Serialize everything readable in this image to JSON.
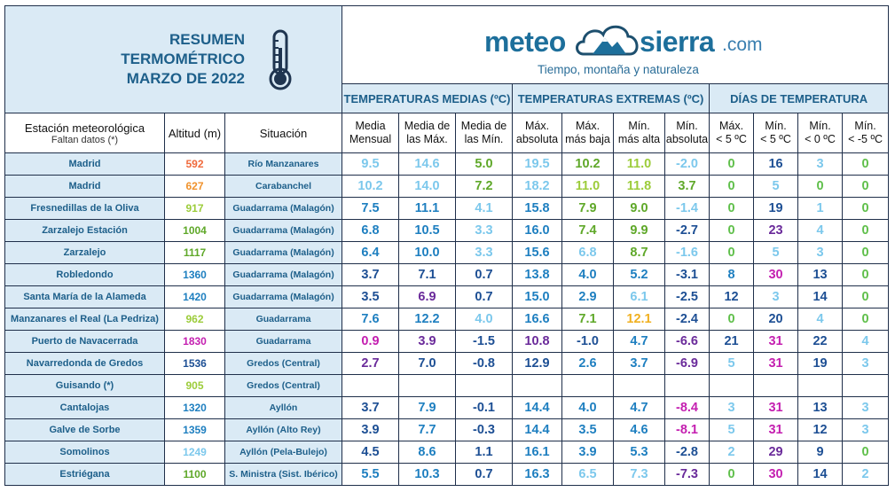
{
  "title": {
    "line1": "RESUMEN",
    "line2": "TERMOMÉTRICO",
    "line3": "MARZO DE 2022"
  },
  "brand": {
    "meteo": "meteo",
    "sierra": "sierra",
    "com": ".com",
    "tagline": "Tiempo, montaña y naturaleza"
  },
  "groups": {
    "medias": "TEMPERATURAS MEDIAS (ºC)",
    "extremas": "TEMPERATURAS EXTREMAS (ºC)",
    "dias": "DÍAS DE TEMPERATURA"
  },
  "columns": {
    "station": "Estación meteorológica",
    "station_note": "Faltan datos (*)",
    "altitude": "Altitud (m)",
    "situation": "Situación",
    "media_mensual": [
      "Media",
      "Mensual"
    ],
    "media_max": [
      "Media de",
      "las Máx."
    ],
    "media_min": [
      "Media de",
      "las Mín."
    ],
    "max_abs": [
      "Máx.",
      "absoluta"
    ],
    "max_baja": [
      "Máx.",
      "más baja"
    ],
    "min_alta": [
      "Mín.",
      "más alta"
    ],
    "min_abs": [
      "Mín.",
      "absoluta"
    ],
    "d1": [
      "Máx.",
      "< 5 ºC"
    ],
    "d2": [
      "Mín.",
      "< 5 ºC"
    ],
    "d3": [
      "Mín.",
      "< 0 ºC"
    ],
    "d4": [
      "Mín.",
      "< -5 ºC"
    ]
  },
  "rows": [
    {
      "station": "Madrid",
      "alt": "592",
      "alt_color": "#f06a3c",
      "sit": "Río Manzanares",
      "vals": [
        "9.5",
        "14.6",
        "5.0",
        "19.5",
        "10.2",
        "11.0",
        "-2.0",
        "0",
        "16",
        "3",
        "0"
      ],
      "colors": [
        "#7cc8ec",
        "#7cc8ec",
        "#5fa829",
        "#7cc8ec",
        "#5fa829",
        "#9ccc3a",
        "#7cc8ec",
        "#5fbf4a",
        "#1d4f94",
        "#7cc8ec",
        "#5fbf4a"
      ]
    },
    {
      "station": "Madrid",
      "alt": "627",
      "alt_color": "#f0922c",
      "sit": "Carabanchel",
      "vals": [
        "10.2",
        "14.0",
        "7.2",
        "18.2",
        "11.0",
        "11.8",
        "3.7",
        "0",
        "5",
        "0",
        "0"
      ],
      "colors": [
        "#7cc8ec",
        "#7cc8ec",
        "#5fa829",
        "#7cc8ec",
        "#9ccc3a",
        "#9ccc3a",
        "#5fa829",
        "#5fbf4a",
        "#7cc8ec",
        "#5fbf4a",
        "#5fbf4a"
      ]
    },
    {
      "station": "Fresnedillas de la Oliva",
      "alt": "917",
      "alt_color": "#9ccc3a",
      "sit": "Guadarrama (Malagón)",
      "vals": [
        "7.5",
        "11.1",
        "4.1",
        "15.8",
        "7.9",
        "9.0",
        "-1.4",
        "0",
        "19",
        "1",
        "0"
      ],
      "colors": [
        "#1e7fc0",
        "#1e7fc0",
        "#7cc8ec",
        "#1e7fc0",
        "#5fa829",
        "#5fa829",
        "#7cc8ec",
        "#5fbf4a",
        "#1d4f94",
        "#7cc8ec",
        "#5fbf4a"
      ]
    },
    {
      "station": "Zarzalejo Estación",
      "alt": "1004",
      "alt_color": "#5fa829",
      "sit": "Guadarrama (Malagón)",
      "vals": [
        "6.8",
        "10.5",
        "3.3",
        "16.0",
        "7.4",
        "9.9",
        "-2.7",
        "0",
        "23",
        "4",
        "0"
      ],
      "colors": [
        "#1e7fc0",
        "#1e7fc0",
        "#7cc8ec",
        "#1e7fc0",
        "#5fa829",
        "#5fa829",
        "#1d4f94",
        "#5fbf4a",
        "#6a2a9a",
        "#7cc8ec",
        "#5fbf4a"
      ]
    },
    {
      "station": "Zarzalejo",
      "alt": "1117",
      "alt_color": "#5fa829",
      "sit": "Guadarrama (Malagón)",
      "vals": [
        "6.4",
        "10.0",
        "3.3",
        "15.6",
        "6.8",
        "8.7",
        "-1.6",
        "0",
        "5",
        "3",
        "0"
      ],
      "colors": [
        "#1e7fc0",
        "#1e7fc0",
        "#7cc8ec",
        "#1e7fc0",
        "#7cc8ec",
        "#5fa829",
        "#7cc8ec",
        "#5fbf4a",
        "#7cc8ec",
        "#7cc8ec",
        "#5fbf4a"
      ]
    },
    {
      "station": "Robledondo",
      "alt": "1360",
      "alt_color": "#1e7fc0",
      "sit": "Guadarrama (Malagón)",
      "vals": [
        "3.7",
        "7.1",
        "0.7",
        "13.8",
        "4.0",
        "5.2",
        "-3.1",
        "8",
        "30",
        "13",
        "0"
      ],
      "colors": [
        "#1d4f94",
        "#1d4f94",
        "#1d4f94",
        "#1e7fc0",
        "#1e7fc0",
        "#1e7fc0",
        "#1d4f94",
        "#1e7fc0",
        "#c41fb0",
        "#1d4f94",
        "#5fbf4a"
      ]
    },
    {
      "station": "Santa María de la Alameda",
      "alt": "1420",
      "alt_color": "#1e7fc0",
      "sit": "Guadarrama (Malagón)",
      "vals": [
        "3.5",
        "6.9",
        "0.7",
        "15.0",
        "2.9",
        "6.1",
        "-2.5",
        "12",
        "3",
        "14",
        "0"
      ],
      "colors": [
        "#1d4f94",
        "#6a2a9a",
        "#1d4f94",
        "#1e7fc0",
        "#1e7fc0",
        "#7cc8ec",
        "#1d4f94",
        "#1d4f94",
        "#7cc8ec",
        "#1d4f94",
        "#5fbf4a"
      ]
    },
    {
      "station": "Manzanares el Real (La Pedriza)",
      "alt": "962",
      "alt_color": "#9ccc3a",
      "sit": "Guadarrama",
      "vals": [
        "7.6",
        "12.2",
        "4.0",
        "16.6",
        "7.1",
        "12.1",
        "-2.4",
        "0",
        "20",
        "4",
        "0"
      ],
      "colors": [
        "#1e7fc0",
        "#1e7fc0",
        "#7cc8ec",
        "#1e7fc0",
        "#5fa829",
        "#f0b020",
        "#1d4f94",
        "#5fbf4a",
        "#1d4f94",
        "#7cc8ec",
        "#5fbf4a"
      ]
    },
    {
      "station": "Puerto de Navacerrada",
      "alt": "1830",
      "alt_color": "#c41fb0",
      "sit": "Guadarrama",
      "vals": [
        "0.9",
        "3.9",
        "-1.5",
        "10.8",
        "-1.0",
        "4.7",
        "-6.6",
        "21",
        "31",
        "22",
        "4"
      ],
      "colors": [
        "#c41fb0",
        "#6a2a9a",
        "#1d4f94",
        "#6a2a9a",
        "#1d4f94",
        "#1e7fc0",
        "#6a2a9a",
        "#1d4f94",
        "#c41fb0",
        "#1d4f94",
        "#7cc8ec"
      ]
    },
    {
      "station": "Navarredonda de Gredos",
      "alt": "1536",
      "alt_color": "#1d4f94",
      "sit": "Gredos (Central)",
      "vals": [
        "2.7",
        "7.0",
        "-0.8",
        "12.9",
        "2.6",
        "3.7",
        "-6.9",
        "5",
        "31",
        "19",
        "3"
      ],
      "colors": [
        "#6a2a9a",
        "#1d4f94",
        "#1d4f94",
        "#1d4f94",
        "#1e7fc0",
        "#1e7fc0",
        "#6a2a9a",
        "#7cc8ec",
        "#c41fb0",
        "#1d4f94",
        "#7cc8ec"
      ]
    },
    {
      "station": "Guisando (*)",
      "alt": "905",
      "alt_color": "#9ccc3a",
      "sit": "Gredos (Central)",
      "vals": [
        "",
        "",
        "",
        "",
        "",
        "",
        "",
        "",
        "",
        "",
        ""
      ],
      "colors": [
        "#000",
        "#000",
        "#000",
        "#000",
        "#000",
        "#000",
        "#000",
        "#000",
        "#000",
        "#000",
        "#000"
      ]
    },
    {
      "station": "Cantalojas",
      "alt": "1320",
      "alt_color": "#1e7fc0",
      "sit": "Ayllón",
      "vals": [
        "3.7",
        "7.9",
        "-0.1",
        "14.4",
        "4.0",
        "4.7",
        "-8.4",
        "3",
        "31",
        "13",
        "3"
      ],
      "colors": [
        "#1d4f94",
        "#1e7fc0",
        "#1d4f94",
        "#1e7fc0",
        "#1e7fc0",
        "#1e7fc0",
        "#c41fb0",
        "#7cc8ec",
        "#c41fb0",
        "#1d4f94",
        "#7cc8ec"
      ]
    },
    {
      "station": "Galve de Sorbe",
      "alt": "1359",
      "alt_color": "#1e7fc0",
      "sit": "Ayllón (Alto Rey)",
      "vals": [
        "3.9",
        "7.7",
        "-0.3",
        "14.4",
        "3.5",
        "4.6",
        "-8.1",
        "5",
        "31",
        "12",
        "3"
      ],
      "colors": [
        "#1d4f94",
        "#1e7fc0",
        "#1d4f94",
        "#1e7fc0",
        "#1e7fc0",
        "#1e7fc0",
        "#c41fb0",
        "#7cc8ec",
        "#c41fb0",
        "#1d4f94",
        "#7cc8ec"
      ]
    },
    {
      "station": "Somolinos",
      "alt": "1249",
      "alt_color": "#7cc8ec",
      "sit": "Ayllón (Pela-Bulejo)",
      "vals": [
        "4.5",
        "8.6",
        "1.1",
        "16.1",
        "3.9",
        "5.3",
        "-2.8",
        "2",
        "29",
        "9",
        "0"
      ],
      "colors": [
        "#1d4f94",
        "#1e7fc0",
        "#1d4f94",
        "#1e7fc0",
        "#1e7fc0",
        "#1e7fc0",
        "#1d4f94",
        "#7cc8ec",
        "#6a2a9a",
        "#1d4f94",
        "#5fbf4a"
      ]
    },
    {
      "station": "Estriégana",
      "alt": "1100",
      "alt_color": "#5fa829",
      "sit": "S. Ministra (Sist. Ibérico)",
      "vals": [
        "5.5",
        "10.3",
        "0.7",
        "16.3",
        "6.5",
        "7.3",
        "-7.3",
        "0",
        "30",
        "14",
        "2"
      ],
      "colors": [
        "#1e7fc0",
        "#1e7fc0",
        "#1d4f94",
        "#1e7fc0",
        "#7cc8ec",
        "#7cc8ec",
        "#6a2a9a",
        "#5fbf4a",
        "#c41fb0",
        "#1d4f94",
        "#7cc8ec"
      ]
    }
  ]
}
